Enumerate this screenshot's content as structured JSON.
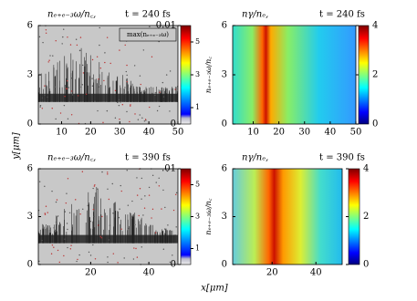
{
  "chart_data": [
    {
      "type": "heatmap",
      "title": "nₑ₊ₑ₋₃ω/n꜀,",
      "subtitle": "t = 240 fs",
      "legend_label": "max(nₑ₊ₑ₋₃ω)",
      "xlim": [
        2,
        50
      ],
      "xticks": [
        10,
        20,
        30,
        40,
        50
      ],
      "ylim": [
        0,
        6
      ],
      "yticks": [
        0,
        3,
        6
      ],
      "colorbar": {
        "lim": [
          0,
          0.01
        ],
        "ticks": [
          0,
          0.01
        ],
        "y2lim": [
          0,
          6
        ],
        "y2ticks": [
          1,
          3,
          5
        ],
        "y2label": "nₑ₊ₑ₋₃ω/n꜀",
        "gray_bottom": true
      }
    },
    {
      "type": "heatmap",
      "title": "nγ/nₑ,",
      "subtitle": "t = 240 fs",
      "xlim": [
        2,
        50
      ],
      "xticks": [
        10,
        20,
        30,
        40,
        50
      ],
      "ylim": [
        0,
        6
      ],
      "yticks": [
        0,
        3,
        6
      ],
      "colorbar": {
        "lim": [
          0,
          4
        ],
        "ticks": [
          0,
          2,
          4
        ]
      }
    },
    {
      "type": "heatmap",
      "title": "nₑ₊ₑ₋₃ω/n꜀,",
      "subtitle": "t = 390 fs",
      "ylabel": "y[μm]",
      "xlim": [
        2,
        50
      ],
      "xticks": [
        20,
        40
      ],
      "ylim": [
        0,
        6
      ],
      "yticks": [
        0,
        3,
        6
      ],
      "colorbar": {
        "lim": [
          0,
          0.01
        ],
        "ticks": [
          0,
          {
            "value": 0.01,
            "label": ".01"
          }
        ],
        "y2lim": [
          0,
          6
        ],
        "y2ticks": [
          1,
          3,
          5
        ],
        "y2label": "nₑ₊ₑ₋₃ω/n꜀",
        "gray_bottom": true
      }
    },
    {
      "type": "heatmap",
      "title": "nγ/nₑ,",
      "subtitle": "t = 390 fs",
      "xlabel": "x[μm]",
      "xlim": [
        2,
        52
      ],
      "xticks": [
        20,
        40
      ],
      "ylim": [
        0,
        6
      ],
      "yticks": [
        0,
        3,
        6
      ],
      "colorbar": {
        "lim": [
          0,
          4
        ],
        "ticks": [
          0,
          2,
          4
        ]
      }
    }
  ]
}
